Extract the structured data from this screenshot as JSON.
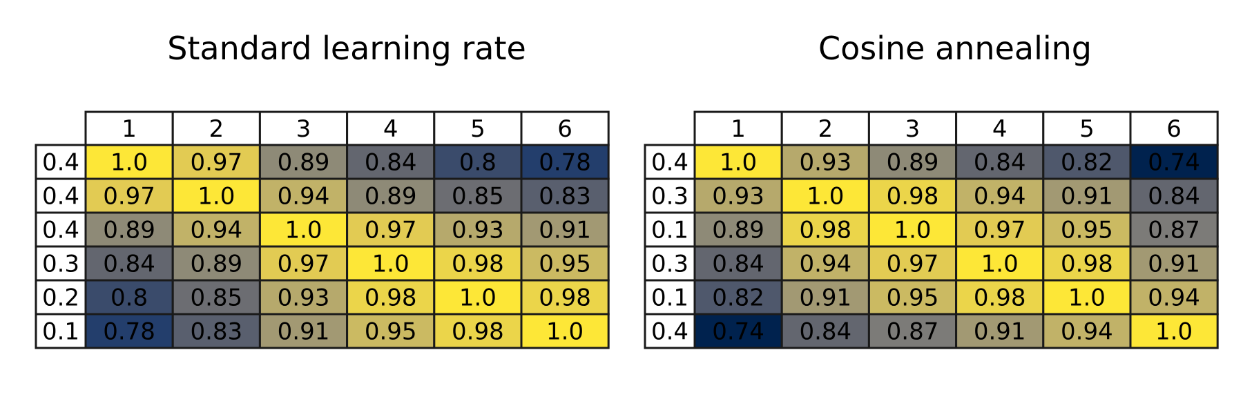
{
  "chart_data": [
    {
      "type": "table",
      "title": "Standard learning rate",
      "column_headers": [
        "1",
        "2",
        "3",
        "4",
        "5",
        "6"
      ],
      "row_labels": [
        "0.4",
        "0.4",
        "0.4",
        "0.3",
        "0.2",
        "0.1"
      ],
      "values": [
        [
          "1.0",
          "0.97",
          "0.89",
          "0.84",
          "0.8",
          "0.78"
        ],
        [
          "0.97",
          "1.0",
          "0.94",
          "0.89",
          "0.85",
          "0.83"
        ],
        [
          "0.89",
          "0.94",
          "1.0",
          "0.97",
          "0.93",
          "0.91"
        ],
        [
          "0.84",
          "0.89",
          "0.97",
          "1.0",
          "0.98",
          "0.95"
        ],
        [
          "0.8",
          "0.85",
          "0.93",
          "0.98",
          "1.0",
          "0.98"
        ],
        [
          "0.78",
          "0.83",
          "0.91",
          "0.95",
          "0.98",
          "1.0"
        ]
      ],
      "colormap": "cividis",
      "color_range": [
        0.74,
        1.0
      ]
    },
    {
      "type": "table",
      "title": "Cosine annealing",
      "column_headers": [
        "1",
        "2",
        "3",
        "4",
        "5",
        "6"
      ],
      "row_labels": [
        "0.4",
        "0.3",
        "0.1",
        "0.3",
        "0.1",
        "0.4"
      ],
      "values": [
        [
          "1.0",
          "0.93",
          "0.89",
          "0.84",
          "0.82",
          "0.74"
        ],
        [
          "0.93",
          "1.0",
          "0.98",
          "0.94",
          "0.91",
          "0.84"
        ],
        [
          "0.89",
          "0.98",
          "1.0",
          "0.97",
          "0.95",
          "0.87"
        ],
        [
          "0.84",
          "0.94",
          "0.97",
          "1.0",
          "0.98",
          "0.91"
        ],
        [
          "0.82",
          "0.91",
          "0.95",
          "0.98",
          "1.0",
          "0.94"
        ],
        [
          "0.74",
          "0.84",
          "0.87",
          "0.91",
          "0.94",
          "1.0"
        ]
      ],
      "colormap": "cividis",
      "color_range": [
        0.74,
        1.0
      ]
    }
  ]
}
